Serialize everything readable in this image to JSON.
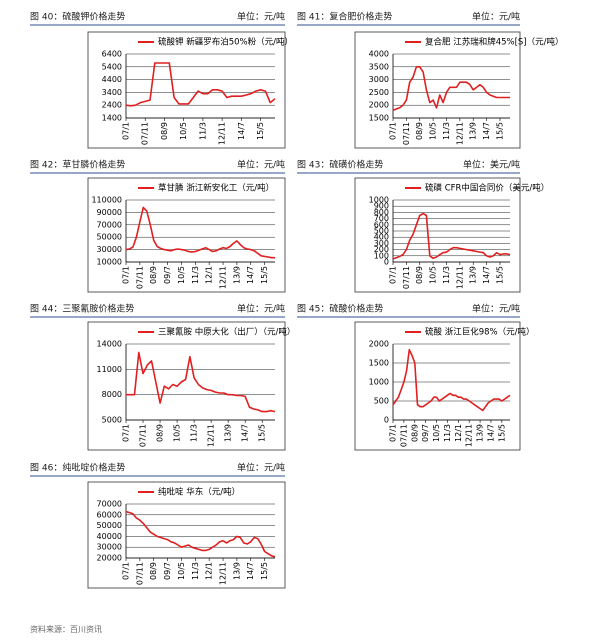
{
  "chart_data": [
    {
      "type": "line",
      "caption": "图 40：硫酸钾价格走势",
      "unit": "单位：元/吨",
      "categories": [
        "07/1",
        null,
        null,
        null,
        "07/11",
        null,
        null,
        null,
        "08/9",
        null,
        null,
        null,
        "10/5",
        null,
        null,
        null,
        "11/3",
        null,
        null,
        null,
        "12/11",
        null,
        null,
        null,
        "14/7",
        null,
        null,
        null,
        "15/5",
        null,
        null,
        null
      ],
      "series": [
        {
          "name": "硫酸钾 新疆罗布泊50%粉（元/吨）",
          "color": "#e02020",
          "values": [
            2400,
            2350,
            2400,
            2600,
            2700,
            2800,
            5700,
            5700,
            5700,
            5700,
            3000,
            2500,
            2500,
            2500,
            3000,
            3500,
            3300,
            3300,
            3600,
            3600,
            3500,
            3000,
            3100,
            3100,
            3100,
            3200,
            3300,
            3500,
            3600,
            3500,
            2600,
            2900
          ]
        }
      ],
      "ylim": [
        1400,
        6400
      ],
      "yticks": [
        1400,
        2400,
        3400,
        4400,
        5400,
        6400
      ],
      "grid": true
    },
    {
      "type": "line",
      "caption": "图 41：复合肥价格走势",
      "unit": "单位：元/吨",
      "categories": [
        "07/1",
        null,
        null,
        null,
        "07/11",
        null,
        null,
        null,
        "08/9",
        null,
        null,
        null,
        "10/5",
        null,
        null,
        null,
        "11/3",
        null,
        null,
        null,
        "12/11",
        null,
        null,
        null,
        "13/9",
        null,
        null,
        null,
        "14/7",
        null,
        null,
        null,
        "15/5",
        null,
        null,
        null
      ],
      "series": [
        {
          "name": "复合肥 江苏瑞和牌45%[S]（元/吨）",
          "color": "#e02020",
          "values": [
            1800,
            1850,
            1900,
            2000,
            2200,
            2900,
            3100,
            3500,
            3500,
            3300,
            2600,
            2100,
            2200,
            1900,
            2400,
            2100,
            2500,
            2700,
            2700,
            2700,
            2900,
            2900,
            2900,
            2800,
            2600,
            2700,
            2800,
            2700,
            2500,
            2400,
            2350,
            2300,
            2300,
            2300,
            2300,
            2300
          ]
        }
      ],
      "ylim": [
        1500,
        4000
      ],
      "yticks": [
        1500,
        2000,
        2500,
        3000,
        3500,
        4000
      ],
      "grid": true
    },
    {
      "type": "line",
      "caption": "图 42：草甘膦价格走势",
      "unit": "单位：元/吨",
      "categories": [
        "07/1",
        null,
        null,
        null,
        "07/11",
        null,
        null,
        null,
        "08/9",
        null,
        null,
        null,
        "09/7",
        null,
        null,
        null,
        "10/5",
        null,
        null,
        null,
        "11/3",
        null,
        null,
        null,
        "12/1",
        null,
        null,
        null,
        "12/11",
        null,
        null,
        null,
        "13/9",
        null,
        null,
        null,
        "14/7",
        null,
        null,
        null,
        "15/5",
        null,
        null,
        null
      ],
      "series": [
        {
          "name": "草甘膦 浙江新安化工（元/吨）",
          "color": "#e02020",
          "values": [
            30000,
            31000,
            34000,
            50000,
            75000,
            98000,
            92000,
            70000,
            45000,
            35000,
            32000,
            30000,
            29000,
            28000,
            30000,
            31000,
            30000,
            29000,
            27000,
            26000,
            27000,
            29000,
            31000,
            33000,
            30000,
            27000,
            28000,
            31000,
            33000,
            32000,
            35000,
            40000,
            44000,
            38000,
            33000,
            31000,
            30000,
            28000,
            24000,
            20000,
            19000,
            18000,
            17000,
            17000
          ]
        }
      ],
      "ylim": [
        10000,
        110000
      ],
      "yticks": [
        10000,
        30000,
        50000,
        70000,
        90000,
        110000
      ],
      "grid": true
    },
    {
      "type": "line",
      "caption": "图 43：硫磺价格走势",
      "unit": "单位：美元/吨",
      "categories": [
        "07/1",
        null,
        null,
        null,
        "07/11",
        null,
        null,
        null,
        "08/9",
        null,
        null,
        null,
        "10/5",
        null,
        null,
        null,
        "11/3",
        null,
        null,
        null,
        "12/11",
        null,
        null,
        null,
        "13/9",
        null,
        null,
        null,
        "14/7",
        null,
        null,
        null,
        "15/5",
        null,
        null,
        null
      ],
      "series": [
        {
          "name": "硫磺 CFR中国合同价（美元/吨）",
          "color": "#e02020",
          "values": [
            50,
            70,
            90,
            120,
            200,
            350,
            450,
            600,
            750,
            780,
            750,
            100,
            60,
            80,
            120,
            150,
            160,
            200,
            230,
            230,
            220,
            210,
            200,
            190,
            180,
            170,
            160,
            150,
            100,
            80,
            100,
            150,
            120,
            130,
            130,
            120
          ]
        }
      ],
      "ylim": [
        0,
        1000
      ],
      "yticks": [
        0,
        100,
        200,
        300,
        400,
        500,
        600,
        700,
        800,
        900,
        1000
      ],
      "grid": true
    },
    {
      "type": "line",
      "caption": "图 44：三聚氰胺价格走势",
      "unit": "单位：元/吨",
      "categories": [
        "07/1",
        null,
        null,
        null,
        "07/11",
        null,
        null,
        null,
        "08/9",
        null,
        null,
        null,
        "10/5",
        null,
        null,
        null,
        "11/3",
        null,
        null,
        null,
        "12/11",
        null,
        null,
        null,
        "13/9",
        null,
        null,
        null,
        "14/7",
        null,
        null,
        null,
        "15/5",
        null,
        null,
        null
      ],
      "series": [
        {
          "name": "三聚氰胺 中原大化（出厂）（元/吨）",
          "color": "#e02020",
          "values": [
            8000,
            8000,
            8000,
            13000,
            10500,
            11500,
            12000,
            9500,
            7000,
            9000,
            8700,
            9200,
            9000,
            9500,
            9800,
            12500,
            10000,
            9200,
            8800,
            8600,
            8500,
            8300,
            8200,
            8200,
            8000,
            8000,
            7900,
            7900,
            7800,
            6500,
            6300,
            6200,
            6000,
            6000,
            6100,
            6000
          ]
        }
      ],
      "ylim": [
        5000,
        14000
      ],
      "yticks": [
        5000,
        8000,
        11000,
        14000
      ],
      "grid": true
    },
    {
      "type": "line",
      "caption": "图 45：硫酸价格走势",
      "unit": "单位：元/吨",
      "categories": [
        "07/1",
        null,
        null,
        null,
        "07/11",
        null,
        null,
        null,
        "08/9",
        null,
        null,
        null,
        "09/7",
        null,
        null,
        null,
        "10/5",
        null,
        null,
        null,
        "11/3",
        null,
        null,
        null,
        "12/1",
        null,
        null,
        null,
        "12/11",
        null,
        null,
        null,
        "13/9",
        null,
        null,
        null,
        "14/7",
        null,
        null,
        null,
        "15/5",
        null,
        null,
        null
      ],
      "series": [
        {
          "name": "硫酸 浙江巨化98%（元/吨）",
          "color": "#e02020",
          "values": [
            400,
            500,
            600,
            800,
            1000,
            1300,
            1850,
            1700,
            1500,
            400,
            350,
            350,
            400,
            450,
            500,
            600,
            600,
            500,
            550,
            600,
            650,
            700,
            650,
            650,
            600,
            600,
            550,
            550,
            500,
            450,
            400,
            350,
            300,
            250,
            350,
            450,
            500,
            550,
            550,
            550,
            500,
            550,
            600,
            650
          ]
        }
      ],
      "ylim": [
        0,
        2000
      ],
      "yticks": [
        0,
        500,
        1000,
        1500,
        2000
      ],
      "grid": true
    },
    {
      "type": "line",
      "caption": "图 46：纯吡啶价格走势",
      "unit": "单位：元/吨",
      "categories": [
        "07/1",
        null,
        null,
        null,
        "07/11",
        null,
        null,
        null,
        "08/9",
        null,
        null,
        null,
        "09/7",
        null,
        null,
        null,
        "10/5",
        null,
        null,
        null,
        "11/3",
        null,
        null,
        null,
        "12/1",
        null,
        null,
        null,
        "12/11",
        null,
        null,
        null,
        "13/9",
        null,
        null,
        null,
        "14/7",
        null,
        null,
        null,
        "15/5",
        null,
        null,
        null
      ],
      "series": [
        {
          "name": "纯吡啶 华东（元/吨）",
          "color": "#e02020",
          "values": [
            63000,
            62000,
            61000,
            57000,
            55000,
            52000,
            48000,
            44000,
            42000,
            40000,
            39000,
            38000,
            37000,
            35000,
            34000,
            32000,
            30000,
            31000,
            32000,
            30000,
            29000,
            28000,
            27000,
            27000,
            28000,
            30000,
            32000,
            35000,
            36000,
            34000,
            36000,
            37000,
            40000,
            39000,
            34000,
            33000,
            35000,
            39000,
            38000,
            33000,
            26000,
            24000,
            22000,
            21000
          ]
        }
      ],
      "ylim": [
        20000,
        70000
      ],
      "yticks": [
        20000,
        30000,
        40000,
        50000,
        60000,
        70000
      ],
      "grid": true
    }
  ],
  "source": "资料来源：百川资讯"
}
